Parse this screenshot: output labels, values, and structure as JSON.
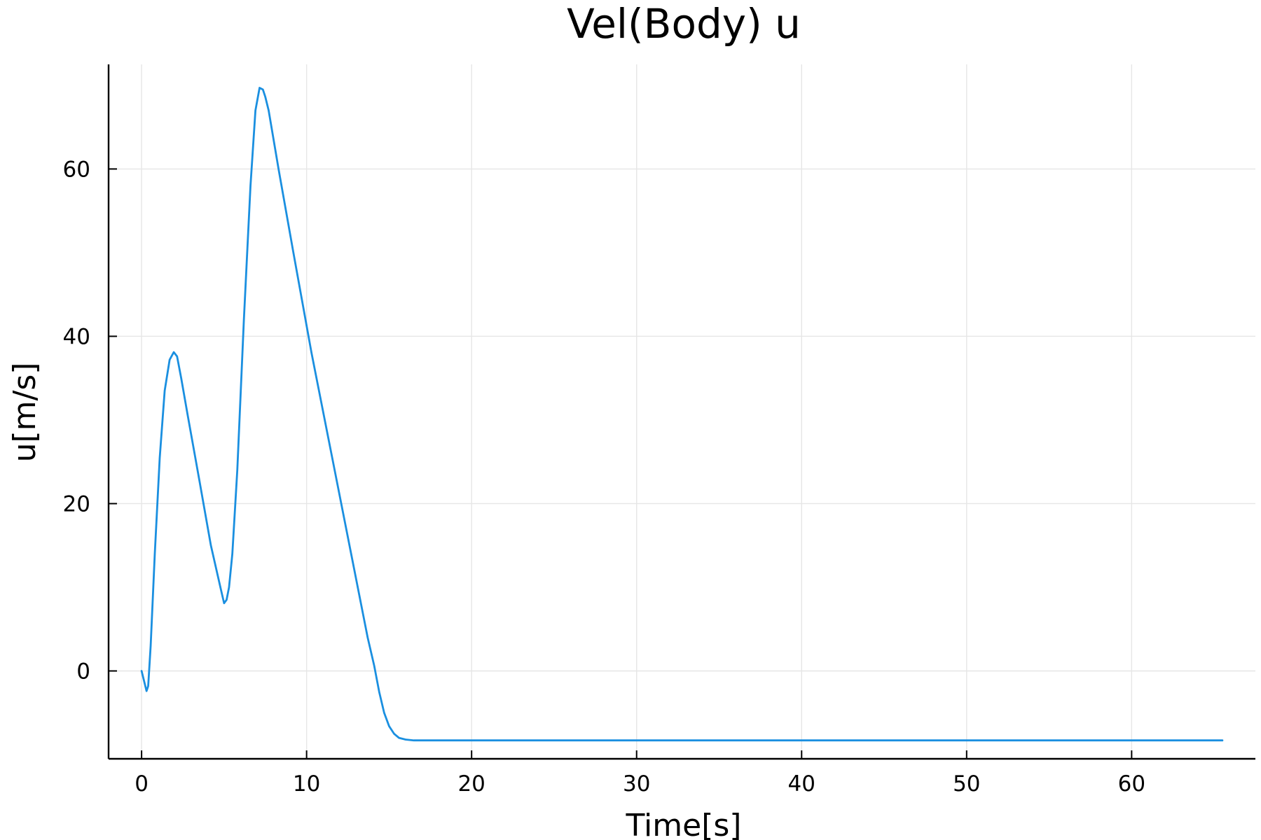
{
  "chart_data": {
    "type": "line",
    "title": "Vel(Body) u",
    "xlabel": "Time[s]",
    "ylabel": "u[m/s]",
    "xlim": [
      -2,
      67.5
    ],
    "ylim": [
      -10.5,
      72.5
    ],
    "xticks": [
      0,
      10,
      20,
      30,
      40,
      50,
      60
    ],
    "yticks": [
      0,
      20,
      40,
      60
    ],
    "grid": true,
    "legend": "none",
    "series_color": "#1a8fe0",
    "series": [
      {
        "x": [
          0,
          0.15,
          0.3,
          0.4,
          0.55,
          0.8,
          1.1,
          1.4,
          1.7,
          1.95,
          2.15,
          2.4,
          2.8,
          3.5,
          4.2,
          4.8,
          5.0,
          5.15,
          5.3,
          5.5,
          5.8,
          6.2,
          6.6,
          6.9,
          7.15,
          7.35,
          7.5,
          7.7,
          8.3,
          9.2,
          10.3,
          11.5,
          12.7,
          13.7,
          14.1,
          14.4,
          14.7,
          15.0,
          15.3,
          15.6,
          16.0,
          16.5,
          17.2,
          18.5,
          25,
          40,
          55,
          65.5
        ],
        "y": [
          0,
          -1.2,
          -2.4,
          -1.8,
          3,
          14,
          25.5,
          33.5,
          37.2,
          38.1,
          37.6,
          35,
          30.5,
          22.8,
          15,
          9.8,
          8.1,
          8.5,
          10,
          14,
          24,
          42,
          58,
          67,
          69.7,
          69.5,
          68.6,
          67,
          60,
          50,
          38,
          26,
          14,
          4,
          0.6,
          -2.5,
          -5,
          -6.6,
          -7.5,
          -8,
          -8.2,
          -8.3,
          -8.3,
          -8.3,
          -8.3,
          -8.3,
          -8.3,
          -8.3
        ]
      }
    ]
  }
}
